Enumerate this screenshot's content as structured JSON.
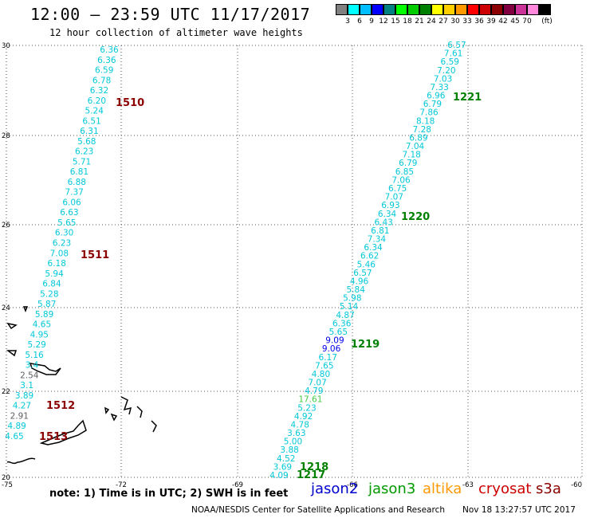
{
  "header": {
    "title": "12:00 – 23:59 UTC 11/17/2017",
    "subtitle": "12 hour collection of altimeter wave heights"
  },
  "color_scale": {
    "colors": [
      "#808080",
      "#00ffff",
      "#00bfff",
      "#0000ff",
      "#008080",
      "#00ff00",
      "#00cc00",
      "#008000",
      "#ffff00",
      "#ffd000",
      "#ff9900",
      "#ff0000",
      "#cc0000",
      "#8b0000",
      "#800040",
      "#cc3399",
      "#ff88dd",
      "#000000"
    ],
    "labels": [
      "3",
      "6",
      "9",
      "12",
      "15",
      "18",
      "21",
      "24",
      "27",
      "30",
      "33",
      "36",
      "39",
      "42",
      "45",
      "70",
      "(ft)"
    ]
  },
  "axes": {
    "x_ticks": [
      "-75",
      "-72",
      "-69",
      "-66",
      "-63",
      "-60"
    ],
    "y_ticks": [
      "30",
      "28",
      "26",
      "24",
      "22",
      "20"
    ]
  },
  "track_times": [
    {
      "label": "1510",
      "color": "#8b0000"
    },
    {
      "label": "1511",
      "color": "#8b0000"
    },
    {
      "label": "1512",
      "color": "#8b0000"
    },
    {
      "label": "1513",
      "color": "#8b0000"
    },
    {
      "label": "1221",
      "color": "#008000"
    },
    {
      "label": "1220",
      "color": "#008000"
    },
    {
      "label": "1219",
      "color": "#008000"
    },
    {
      "label": "1218",
      "color": "#008000"
    },
    {
      "label": "1217",
      "color": "#008000"
    }
  ],
  "west_track_swh": [
    "6.36",
    "6.36",
    "6.59",
    "6.78",
    "6.32",
    "6.20",
    "5.24",
    "6.51",
    "6.31",
    "5.68",
    "6.23",
    "5.71",
    "6.81",
    "6.88",
    "7.37",
    "6.06",
    "6.63",
    "5.65",
    "6.30",
    "6.23",
    "7.08",
    "6.18",
    "5.94",
    "6.84",
    "5.28",
    "5.87",
    "5.89",
    "4.65",
    "4.95",
    "5.29",
    "5.16",
    "3.4",
    "2.54",
    "3.1",
    "3.89",
    "4.27",
    "2.91",
    "4.89",
    "4.65"
  ],
  "east_track_swh": [
    "6.57",
    "7.61",
    "6.59",
    "7.20",
    "7.03",
    "7.33",
    "6.96",
    "6.79",
    "7.86",
    "8.18",
    "7.28",
    "6.89",
    "7.04",
    "7.18",
    "6.79",
    "6.85",
    "7.06",
    "6.75",
    "7.07",
    "6.93",
    "6.34",
    "6.43",
    "6.81",
    "7.34",
    "6.34",
    "6.62",
    "5.46",
    "6.57",
    "4.96",
    "5.84",
    "5.98",
    "5.14",
    "4.87",
    "6.36",
    "5.65",
    "9.09",
    "9.06",
    "6.17",
    "7.65",
    "4.80",
    "7.07",
    "4.79",
    "17.61",
    "5.23",
    "4.92",
    "4.78",
    "3.63",
    "5.00",
    "3.88",
    "4.52",
    "3.69",
    "4.09"
  ],
  "footer": {
    "note": "note: 1) Time is in UTC; 2) SWH is in feet",
    "missions": [
      {
        "name": "jason2",
        "color": "#0000cc"
      },
      {
        "name": "jason3",
        "color": "#009900"
      },
      {
        "name": "altika",
        "color": "#ff9900"
      },
      {
        "name": "cryosat",
        "color": "#cc0000"
      },
      {
        "name": "s3a",
        "color": "#8b0000"
      }
    ],
    "credit": "NOAA/NESDIS Center for Satellite Applications and Research",
    "timestamp": "Nov 18 13:27:57 UTC 2017"
  }
}
